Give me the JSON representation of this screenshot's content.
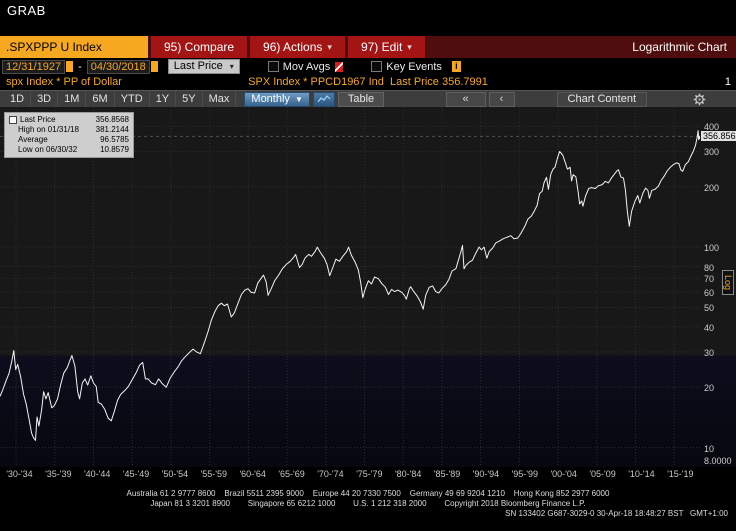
{
  "window": {
    "title": "GRAB"
  },
  "command_bar": {
    "ticker": ".SPXPPP U Index",
    "compare": "95) Compare",
    "actions": "96) Actions",
    "edit": "97) Edit",
    "title": "Logarithmic Chart"
  },
  "controls": {
    "date_from": "12/31/1927",
    "date_to": "04/30/2018",
    "separator": "-",
    "price_type": "Last Price",
    "mov_avgs": "Mov Avgs",
    "key_events": "Key Events"
  },
  "security_bar": {
    "left": "spx Index * PP of Dollar",
    "center": "SPX Index * PPCD1967 Ind  Last Price 356.7991",
    "page": "1"
  },
  "toolbar": {
    "ranges": [
      "1D",
      "3D",
      "1M",
      "6M",
      "YTD",
      "1Y",
      "5Y",
      "Max"
    ],
    "period": "Monthly",
    "table": "Table",
    "chart_content": "Chart Content"
  },
  "icons": {
    "caret_down": "▼",
    "caret_small": "▾",
    "back_all": "«",
    "back": "‹",
    "info": "i"
  },
  "legend": {
    "rows": [
      {
        "label": "Last Price",
        "value": "356.8568",
        "swatch": true
      },
      {
        "label": "High on 01/31/18",
        "value": "381.2144"
      },
      {
        "label": "Average",
        "value": "96.5785"
      },
      {
        "label": "Low on 06/30/32",
        "value": "10.8579"
      }
    ]
  },
  "axis": {
    "y_ticks": [
      {
        "label": "400",
        "value": 400
      },
      {
        "label": "300",
        "value": 300
      },
      {
        "label": "200",
        "value": 200
      },
      {
        "label": "100",
        "value": 100
      },
      {
        "label": "80",
        "value": 80
      },
      {
        "label": "70",
        "value": 70
      },
      {
        "label": "60",
        "value": 60
      },
      {
        "label": "50",
        "value": 50
      },
      {
        "label": "40",
        "value": 40
      },
      {
        "label": "30",
        "value": 30
      },
      {
        "label": "20",
        "value": 20
      },
      {
        "label": "10",
        "value": 10
      },
      {
        "label": "8.0000",
        "value": 8
      }
    ],
    "x_grid_years": [
      1930,
      1935,
      1940,
      1945,
      1950,
      1955,
      1960,
      1965,
      1970,
      1975,
      1980,
      1985,
      1990,
      1995,
      2000,
      2005,
      2010,
      2015
    ],
    "x_labels": [
      "'30-'34",
      "'35-'39",
      "'40-'44",
      "'45-'49",
      "'50-'54",
      "'55-'59",
      "'60-'64",
      "'65-'69",
      "'70-'74",
      "'75-'79",
      "'80-'84",
      "'85-'89",
      "'90-'94",
      "'95-'99",
      "'00-'04",
      "'05-'09",
      "'10-'14",
      "'15-'19"
    ],
    "last_price_label": "356.8568",
    "last_price_value": 356.8568,
    "log_label": "Log"
  },
  "chart_data": {
    "type": "line",
    "title": "SPX Index - PP of Dollar - Logarithmic Chart",
    "series_name": "Last Price (Monthly)",
    "x_range": [
      1927.92,
      2018.33
    ],
    "y_range": [
      8,
      500
    ],
    "y_scale": "log",
    "stats": {
      "last": 356.8568,
      "high_01_31_18": 381.2144,
      "average": 96.5785,
      "low_06_30_32": 10.8579
    },
    "points": [
      [
        1927.92,
        18
      ],
      [
        1928.3,
        19.5
      ],
      [
        1928.7,
        21.5
      ],
      [
        1929.1,
        23.5
      ],
      [
        1929.45,
        27
      ],
      [
        1929.7,
        30.5
      ],
      [
        1929.95,
        24.5
      ],
      [
        1930.2,
        26
      ],
      [
        1930.6,
        22.5
      ],
      [
        1930.95,
        18.5
      ],
      [
        1931.3,
        16.5
      ],
      [
        1931.65,
        14
      ],
      [
        1932,
        11.8
      ],
      [
        1932.25,
        11.2
      ],
      [
        1932.5,
        10.86
      ],
      [
        1932.7,
        14.2
      ],
      [
        1932.95,
        12.8
      ],
      [
        1933.3,
        15.5
      ],
      [
        1933.55,
        19
      ],
      [
        1933.85,
        17.5
      ],
      [
        1934.15,
        18.8
      ],
      [
        1934.6,
        15.8
      ],
      [
        1934.95,
        16.2
      ],
      [
        1935.35,
        17.5
      ],
      [
        1935.75,
        20.5
      ],
      [
        1936.15,
        23.5
      ],
      [
        1936.6,
        25
      ],
      [
        1937,
        27.5
      ],
      [
        1937.2,
        28.8
      ],
      [
        1937.6,
        25.5
      ],
      [
        1937.95,
        19
      ],
      [
        1938.2,
        17.5
      ],
      [
        1938.55,
        21
      ],
      [
        1938.9,
        22
      ],
      [
        1939.25,
        20.5
      ],
      [
        1939.65,
        22.8
      ],
      [
        1940,
        21
      ],
      [
        1940.35,
        20.2
      ],
      [
        1940.6,
        16.8
      ],
      [
        1941,
        16.5
      ],
      [
        1941.45,
        15.5
      ],
      [
        1941.9,
        14
      ],
      [
        1942.3,
        13.6
      ],
      [
        1942.7,
        15.2
      ],
      [
        1943.1,
        17.2
      ],
      [
        1943.5,
        18.4
      ],
      [
        1944,
        19.2
      ],
      [
        1944.5,
        20.2
      ],
      [
        1945,
        21.8
      ],
      [
        1945.5,
        23.6
      ],
      [
        1945.95,
        25.8
      ],
      [
        1946.35,
        26.6
      ],
      [
        1946.7,
        22
      ],
      [
        1947.05,
        22
      ],
      [
        1947.5,
        21
      ],
      [
        1948,
        20.6
      ],
      [
        1948.4,
        22
      ],
      [
        1948.9,
        20.8
      ],
      [
        1949.4,
        20
      ],
      [
        1949.9,
        22.2
      ],
      [
        1950.4,
        23.8
      ],
      [
        1950.9,
        25.2
      ],
      [
        1951.35,
        27
      ],
      [
        1951.85,
        28.4
      ],
      [
        1952.3,
        29.6
      ],
      [
        1952.85,
        31
      ],
      [
        1953.3,
        30
      ],
      [
        1953.8,
        29.4
      ],
      [
        1954.3,
        33.2
      ],
      [
        1954.8,
        38
      ],
      [
        1955.2,
        43
      ],
      [
        1955.65,
        47.5
      ],
      [
        1956.1,
        51
      ],
      [
        1956.5,
        52.5
      ],
      [
        1956.9,
        51
      ],
      [
        1957.3,
        52
      ],
      [
        1957.8,
        44.8
      ],
      [
        1958.2,
        47
      ],
      [
        1958.7,
        53
      ],
      [
        1959.1,
        58
      ],
      [
        1959.55,
        61
      ],
      [
        1959.95,
        62
      ],
      [
        1960.35,
        59.5
      ],
      [
        1960.8,
        59
      ],
      [
        1961.2,
        66
      ],
      [
        1961.65,
        70
      ],
      [
        1961.95,
        72.5
      ],
      [
        1962.3,
        67
      ],
      [
        1962.55,
        57.5
      ],
      [
        1962.95,
        62
      ],
      [
        1963.4,
        68
      ],
      [
        1963.9,
        72.5
      ],
      [
        1964.4,
        78
      ],
      [
        1964.9,
        82
      ],
      [
        1965.4,
        85
      ],
      [
        1965.85,
        89
      ],
      [
        1966.1,
        92
      ],
      [
        1966.6,
        79
      ],
      [
        1966.95,
        82
      ],
      [
        1967.3,
        88
      ],
      [
        1967.8,
        92
      ],
      [
        1968.15,
        90
      ],
      [
        1968.6,
        95
      ],
      [
        1968.9,
        100
      ],
      [
        1969.3,
        94
      ],
      [
        1969.8,
        88
      ],
      [
        1970.15,
        82
      ],
      [
        1970.5,
        72
      ],
      [
        1970.95,
        80
      ],
      [
        1971.3,
        87
      ],
      [
        1971.75,
        85
      ],
      [
        1972.2,
        90
      ],
      [
        1972.7,
        95
      ],
      [
        1972.95,
        100
      ],
      [
        1973.3,
        91
      ],
      [
        1973.8,
        84
      ],
      [
        1974.2,
        77
      ],
      [
        1974.5,
        67
      ],
      [
        1974.78,
        56
      ],
      [
        1975.1,
        62
      ],
      [
        1975.5,
        68
      ],
      [
        1975.9,
        65.5
      ],
      [
        1976.3,
        71
      ],
      [
        1976.8,
        69.5
      ],
      [
        1977.2,
        66
      ],
      [
        1977.7,
        63
      ],
      [
        1978.1,
        58
      ],
      [
        1978.5,
        61.5
      ],
      [
        1978.9,
        60
      ],
      [
        1979.3,
        61
      ],
      [
        1979.8,
        59.5
      ],
      [
        1980.15,
        57.5
      ],
      [
        1980.4,
        55
      ],
      [
        1980.8,
        62
      ],
      [
        1980.95,
        63.5
      ],
      [
        1981.3,
        60.5
      ],
      [
        1981.8,
        57
      ],
      [
        1982.2,
        53.5
      ],
      [
        1982.58,
        49
      ],
      [
        1982.9,
        57.5
      ],
      [
        1983.35,
        63
      ],
      [
        1983.8,
        64
      ],
      [
        1984.2,
        60
      ],
      [
        1984.6,
        59
      ],
      [
        1985,
        62
      ],
      [
        1985.5,
        65
      ],
      [
        1985.9,
        69
      ],
      [
        1986.3,
        76
      ],
      [
        1986.8,
        78
      ],
      [
        1987.2,
        88
      ],
      [
        1987.45,
        95
      ],
      [
        1987.65,
        102
      ],
      [
        1987.85,
        78
      ],
      [
        1988.1,
        81
      ],
      [
        1988.5,
        84
      ],
      [
        1988.95,
        86
      ],
      [
        1989.3,
        92
      ],
      [
        1989.8,
        100
      ],
      [
        1990.1,
        97
      ],
      [
        1990.45,
        100
      ],
      [
        1990.8,
        88
      ],
      [
        1991.1,
        95
      ],
      [
        1991.55,
        99
      ],
      [
        1991.95,
        105
      ],
      [
        1992.4,
        107
      ],
      [
        1992.9,
        110
      ],
      [
        1993.4,
        112
      ],
      [
        1993.9,
        114
      ],
      [
        1994.3,
        110
      ],
      [
        1994.8,
        111
      ],
      [
        1995.2,
        117
      ],
      [
        1995.7,
        127
      ],
      [
        1996.1,
        138
      ],
      [
        1996.55,
        143
      ],
      [
        1996.95,
        152
      ],
      [
        1997.3,
        162
      ],
      [
        1997.6,
        185
      ],
      [
        1997.95,
        190
      ],
      [
        1998.2,
        210
      ],
      [
        1998.5,
        223
      ],
      [
        1998.75,
        194
      ],
      [
        1999.05,
        230
      ],
      [
        1999.35,
        245
      ],
      [
        1999.6,
        250
      ],
      [
        1999.9,
        276
      ],
      [
        2000.2,
        300
      ],
      [
        2000.6,
        288
      ],
      [
        2000.95,
        263
      ],
      [
        2001.2,
        245
      ],
      [
        2001.55,
        250
      ],
      [
        2001.75,
        214
      ],
      [
        2001.95,
        230
      ],
      [
        2002.3,
        224
      ],
      [
        2002.6,
        188
      ],
      [
        2002.78,
        164
      ],
      [
        2003.05,
        170
      ],
      [
        2003.2,
        160
      ],
      [
        2003.55,
        180
      ],
      [
        2003.95,
        196
      ],
      [
        2004.3,
        198
      ],
      [
        2004.8,
        196
      ],
      [
        2005.2,
        202
      ],
      [
        2005.7,
        205
      ],
      [
        2006.1,
        213
      ],
      [
        2006.5,
        209
      ],
      [
        2006.95,
        223
      ],
      [
        2007.3,
        232
      ],
      [
        2007.6,
        240
      ],
      [
        2007.8,
        243
      ],
      [
        2008.1,
        224
      ],
      [
        2008.45,
        221
      ],
      [
        2008.7,
        193
      ],
      [
        2008.95,
        150
      ],
      [
        2009.2,
        127
      ],
      [
        2009.5,
        151
      ],
      [
        2009.95,
        170
      ],
      [
        2010.3,
        181
      ],
      [
        2010.55,
        166
      ],
      [
        2010.95,
        186
      ],
      [
        2011.3,
        197
      ],
      [
        2011.6,
        192
      ],
      [
        2011.8,
        175
      ],
      [
        2012.1,
        192
      ],
      [
        2012.5,
        194
      ],
      [
        2012.95,
        201
      ],
      [
        2013.3,
        215
      ],
      [
        2013.7,
        226
      ],
      [
        2014.1,
        240
      ],
      [
        2014.5,
        250
      ],
      [
        2014.9,
        258
      ],
      [
        2015.3,
        263
      ],
      [
        2015.6,
        261
      ],
      [
        2015.85,
        243
      ],
      [
        2016.1,
        239
      ],
      [
        2016.45,
        258
      ],
      [
        2016.8,
        266
      ],
      [
        2017.1,
        282
      ],
      [
        2017.45,
        300
      ],
      [
        2017.75,
        322
      ],
      [
        2017.95,
        352
      ],
      [
        2018.08,
        381.21
      ],
      [
        2018.16,
        344
      ],
      [
        2018.22,
        358
      ],
      [
        2018.28,
        348
      ],
      [
        2018.33,
        356.86
      ]
    ]
  },
  "footer": {
    "lines": [
      "Australia 61 2 9777 8600    Brazil 5511 2395 9000    Europe 44 20 7330 7500    Germany 49 69 9204 1210    Hong Kong 852 2977 6000",
      "Japan 81 3 3201 8900        Singapore 65 6212 1000        U.S. 1 212 318 2000        Copyright 2018 Bloomberg Finance L.P.",
      "SN 133402 G687-3029-0 30-Apr-18 18:48:27 BST   GMT+1:00"
    ]
  }
}
